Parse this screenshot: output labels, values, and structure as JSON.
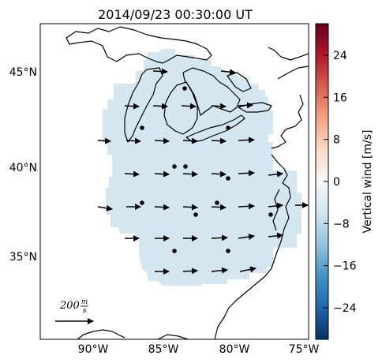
{
  "title": "2014/09/23 00:30:00 UT",
  "lat_labels": [
    "45°N",
    "40°N",
    "35°N"
  ],
  "lon_labels": [
    "90°W",
    "85°W",
    "80°W",
    "75°W"
  ],
  "colorbar": {
    "label": "Vertical wind [m/s]",
    "ticks": [
      "24",
      "16",
      "8",
      "0",
      "−8",
      "−16",
      "−24"
    ],
    "tick_values": [
      24,
      16,
      8,
      0,
      -8,
      -16,
      -24
    ],
    "range": [
      -30,
      30
    ],
    "colormap": "RdBu_r",
    "field_color": "#d4e6ef"
  },
  "scale": {
    "value": "200",
    "unit_top": "m",
    "unit_bottom": "s"
  },
  "colors": {
    "coast": "#000000",
    "arrow": "#000000",
    "station": "#000000"
  }
}
